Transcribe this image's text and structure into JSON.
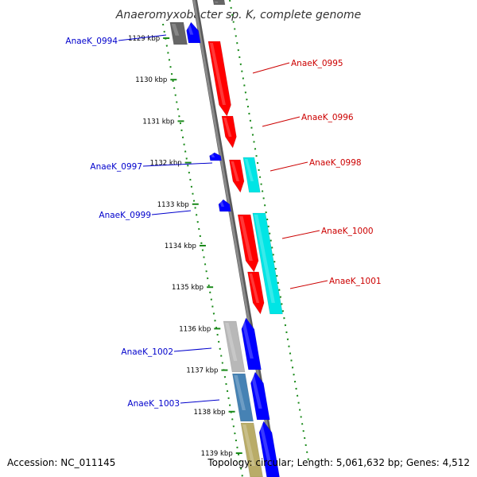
{
  "title": "Anaeromyxobacter sp. K, complete genome",
  "footer": {
    "accession": "Accession: NC_011145",
    "topology": "Topology: circular; Length: 5,061,632 bp; Genes: 4,512"
  },
  "colors": {
    "backbone": "#8a8a8a",
    "dotted_track": "#1a8a1a",
    "label_forward": "#cc0000",
    "label_reverse": "#0000cc"
  },
  "ticks": [
    "1129 kbp",
    "1130 kbp",
    "1131 kbp",
    "1132 kbp",
    "1133 kbp",
    "1134 kbp",
    "1135 kbp",
    "1136 kbp",
    "1137 kbp",
    "1138 kbp",
    "1139 kbp"
  ],
  "gene_labels": {
    "forward": [
      "AnaeK_0995",
      "AnaeK_0996",
      "AnaeK_0998",
      "AnaeK_1000",
      "AnaeK_1001"
    ],
    "reverse": [
      "AnaeK_0994",
      "AnaeK_0997",
      "AnaeK_0999",
      "AnaeK_1002",
      "AnaeK_1003"
    ]
  },
  "feature_colors": {
    "cds_forward": "#ff0000",
    "cds_reverse": "#0000ff",
    "rna": "#00e5e5",
    "grey_dark": "#666666",
    "grey_light": "#b8b8b8",
    "steel": "#4682b4",
    "khaki": "#b9ac68"
  }
}
